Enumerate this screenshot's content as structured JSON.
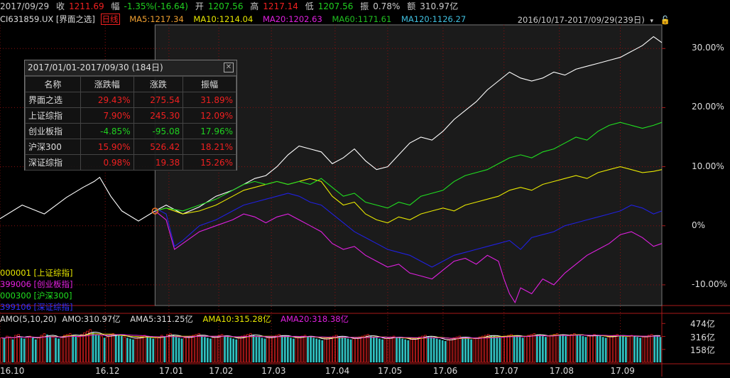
{
  "topbar": {
    "date": "2017/09/29",
    "close_label": "收",
    "close": "1211.69",
    "chg_label": "幅",
    "chg": "-1.35%(-16.64)",
    "open_label": "开",
    "open": "1207.56",
    "high_label": "高",
    "high": "1217.14",
    "low_label": "低",
    "low": "1207.56",
    "amp_label": "振",
    "amp": "0.78%",
    "vol_label": "额",
    "vol": "310.97亿"
  },
  "mabar": {
    "code": "CI631859.UX [界面之选]",
    "period": "日线",
    "ma5": "MA5:1217.34",
    "ma10": "MA10:1214.04",
    "ma20": "MA20:1202.63",
    "ma60": "MA60:1171.61",
    "ma120": "MA120:1126.27",
    "range": "2016/10/17-2017/09/29(239日)",
    "dropdown_icon": "chevron-down-icon",
    "lock_icon": "lock-icon"
  },
  "stats": {
    "title": "2017/01/01-2017/09/30 (184日)",
    "close_icon": "close-icon",
    "headers": [
      "名称",
      "涨跌幅",
      "涨跌",
      "振幅"
    ],
    "rows": [
      {
        "name": "界面之选",
        "pct": "29.43%",
        "chg": "275.54",
        "amp": "31.89%",
        "dir": "up"
      },
      {
        "name": "上证综指",
        "pct": "7.90%",
        "chg": "245.30",
        "amp": "12.09%",
        "dir": "up"
      },
      {
        "name": "创业板指",
        "pct": "-4.85%",
        "chg": "-95.08",
        "amp": "17.96%",
        "dir": "dn"
      },
      {
        "name": "沪深300",
        "pct": "15.90%",
        "chg": "526.42",
        "amp": "18.21%",
        "dir": "up"
      },
      {
        "name": "深证综指",
        "pct": "0.98%",
        "chg": "19.38",
        "amp": "15.26%",
        "dir": "up"
      }
    ]
  },
  "legend": [
    {
      "label": "000001 [上证综指]",
      "color": "#e8e800"
    },
    {
      "label": "399006 [创业板指]",
      "color": "#e020e0"
    },
    {
      "label": "000300 [沪深300]",
      "color": "#20e020"
    },
    {
      "label": "399106 [深证综指]",
      "color": "#3030ff"
    }
  ],
  "amobar": {
    "amo": "AMO(5,10,20)",
    "amo_val": "AMO:310.97亿",
    "ama5": "AMA5:311.25亿",
    "ama10": "AMA10:315.28亿",
    "ama20": "AMA20:318.38亿"
  },
  "colors": {
    "main": "#ffffff",
    "sh": "#e8e800",
    "cyb": "#e020e0",
    "hs300": "#20e020",
    "sz": "#2020e0",
    "grid": "#8a1010",
    "up": "#f02020",
    "down": "#20d020"
  },
  "chart_data": [
    {
      "type": "line",
      "title": "",
      "y_tick_labels": [
        "30.00%",
        "20.00%",
        "10.00%",
        "0%",
        "-10.00%"
      ],
      "y_ticks": [
        30,
        20,
        10,
        0,
        -10
      ],
      "ylim": [
        -13.5,
        34
      ],
      "x_tick_labels": [
        "16.10",
        "16.12",
        "17.01",
        "17.02",
        "17.03",
        "17.04",
        "17.05",
        "17.06",
        "17.07",
        "17.08",
        "17.09"
      ],
      "x_ticks": [
        0,
        38,
        61,
        79,
        98,
        121,
        140,
        160,
        182,
        202,
        224
      ],
      "x_range": [
        0,
        239
      ],
      "compare_start": 56,
      "series": [
        {
          "name": "界面之选",
          "color": "#ffffff",
          "start": 0,
          "x": [
            0,
            8,
            16,
            24,
            30,
            34,
            36,
            40,
            44,
            50,
            56,
            60,
            66,
            72,
            78,
            84,
            88,
            92,
            96,
            100,
            104,
            108,
            112,
            116,
            120,
            124,
            128,
            132,
            136,
            140,
            144,
            148,
            152,
            156,
            160,
            164,
            168,
            172,
            176,
            180,
            184,
            188,
            192,
            196,
            200,
            204,
            208,
            212,
            216,
            220,
            224,
            228,
            232,
            236,
            239
          ],
          "y": [
            1.2,
            3.5,
            2.0,
            4.8,
            6.5,
            7.5,
            8.2,
            5.0,
            2.5,
            0.8,
            2.5,
            3.5,
            2.0,
            3.2,
            5.0,
            6.0,
            7.0,
            8.0,
            8.5,
            10.0,
            12.0,
            13.5,
            13.0,
            12.5,
            10.5,
            11.5,
            13.0,
            11.0,
            9.5,
            10.0,
            12.0,
            14.0,
            15.0,
            14.5,
            16.0,
            18.0,
            19.5,
            21.0,
            23.0,
            24.5,
            26.0,
            25.0,
            24.5,
            25.0,
            26.0,
            25.5,
            26.5,
            27.0,
            27.5,
            28.0,
            28.5,
            29.5,
            30.5,
            32.0,
            31.0
          ]
        },
        {
          "name": "上证综指",
          "color": "#e8e800",
          "start": 56,
          "x": [
            56,
            60,
            66,
            72,
            78,
            84,
            88,
            92,
            96,
            100,
            104,
            108,
            112,
            116,
            120,
            124,
            128,
            132,
            136,
            140,
            144,
            148,
            152,
            156,
            160,
            164,
            168,
            172,
            176,
            180,
            184,
            188,
            192,
            196,
            200,
            204,
            208,
            212,
            216,
            220,
            224,
            228,
            232,
            236,
            239
          ],
          "y": [
            2.5,
            3.0,
            2.0,
            2.5,
            3.5,
            5.0,
            6.0,
            6.5,
            7.0,
            7.5,
            7.0,
            7.5,
            8.0,
            7.5,
            5.0,
            3.5,
            4.0,
            2.0,
            1.0,
            0.5,
            1.5,
            1.0,
            2.0,
            2.5,
            3.0,
            2.5,
            3.5,
            4.0,
            4.5,
            5.0,
            6.0,
            6.5,
            6.0,
            7.0,
            7.5,
            8.0,
            8.5,
            8.0,
            9.0,
            9.5,
            10.0,
            9.5,
            9.0,
            9.2,
            9.5
          ]
        },
        {
          "name": "沪深300",
          "color": "#20e020",
          "start": 56,
          "x": [
            56,
            60,
            66,
            72,
            78,
            84,
            88,
            92,
            96,
            100,
            104,
            108,
            112,
            116,
            120,
            124,
            128,
            132,
            136,
            140,
            144,
            148,
            152,
            156,
            160,
            164,
            168,
            172,
            176,
            180,
            184,
            188,
            192,
            196,
            200,
            204,
            208,
            212,
            216,
            220,
            224,
            228,
            232,
            236,
            239
          ],
          "y": [
            2.5,
            3.0,
            2.5,
            3.5,
            4.5,
            6.0,
            7.0,
            7.5,
            7.0,
            7.5,
            7.0,
            7.5,
            7.0,
            8.0,
            6.5,
            5.0,
            5.5,
            4.0,
            3.5,
            3.0,
            4.0,
            3.5,
            5.0,
            5.5,
            6.0,
            7.5,
            8.5,
            9.0,
            9.5,
            10.5,
            11.5,
            12.0,
            11.5,
            12.5,
            13.0,
            14.0,
            15.0,
            14.5,
            16.0,
            17.0,
            17.5,
            17.0,
            16.5,
            17.0,
            17.5
          ]
        },
        {
          "name": "创业板指",
          "color": "#e020e0",
          "start": 56,
          "x": [
            56,
            60,
            63,
            66,
            72,
            78,
            84,
            88,
            92,
            96,
            100,
            104,
            108,
            112,
            116,
            120,
            124,
            128,
            132,
            136,
            140,
            144,
            148,
            152,
            156,
            160,
            164,
            168,
            172,
            176,
            180,
            182,
            184,
            186,
            188,
            192,
            196,
            200,
            204,
            208,
            212,
            216,
            220,
            224,
            228,
            232,
            236,
            239
          ],
          "y": [
            2.5,
            1.0,
            -4.0,
            -3.0,
            -1.0,
            0.0,
            1.0,
            2.0,
            1.5,
            0.5,
            1.5,
            2.0,
            1.0,
            0.0,
            -1.0,
            -3.0,
            -4.0,
            -3.5,
            -5.0,
            -6.0,
            -7.0,
            -6.5,
            -8.0,
            -8.5,
            -9.0,
            -7.5,
            -6.0,
            -5.5,
            -6.5,
            -5.0,
            -6.0,
            -9.0,
            -11.5,
            -13.0,
            -10.5,
            -11.5,
            -9.0,
            -10.0,
            -8.0,
            -6.5,
            -5.0,
            -4.0,
            -3.0,
            -1.5,
            -1.0,
            -2.0,
            -3.5,
            -3.0
          ]
        },
        {
          "name": "深证综指",
          "color": "#2020e0",
          "start": 56,
          "x": [
            56,
            60,
            63,
            66,
            72,
            78,
            84,
            88,
            92,
            96,
            100,
            104,
            108,
            112,
            116,
            120,
            124,
            128,
            132,
            136,
            140,
            144,
            148,
            152,
            156,
            160,
            164,
            168,
            172,
            176,
            180,
            184,
            188,
            192,
            196,
            200,
            204,
            208,
            212,
            216,
            220,
            224,
            228,
            232,
            236,
            239
          ],
          "y": [
            3.0,
            2.0,
            -3.5,
            -2.5,
            0.0,
            1.0,
            2.5,
            3.5,
            4.0,
            4.5,
            5.0,
            5.5,
            5.0,
            4.0,
            3.5,
            2.0,
            0.5,
            -1.0,
            -2.0,
            -3.0,
            -4.0,
            -4.5,
            -5.0,
            -6.0,
            -7.0,
            -6.0,
            -5.0,
            -4.5,
            -4.0,
            -3.5,
            -3.0,
            -2.5,
            -4.0,
            -2.0,
            -1.5,
            -1.0,
            0.0,
            0.5,
            1.0,
            1.5,
            2.0,
            2.5,
            3.5,
            3.0,
            2.0,
            2.5
          ]
        }
      ]
    },
    {
      "type": "bar",
      "title": "",
      "y_tick_labels": [
        "474亿",
        "316亿",
        "158亿"
      ],
      "y_ticks": [
        474,
        316,
        158
      ],
      "ylim": [
        0,
        520
      ],
      "x_range": [
        0,
        239
      ],
      "values": [
        300,
        290,
        320,
        310,
        280,
        330,
        340,
        300,
        290,
        310,
        320,
        300,
        280,
        300,
        330,
        350,
        340,
        320,
        310,
        300,
        290,
        310,
        330,
        340,
        350,
        330,
        320,
        310,
        340,
        360,
        380,
        400,
        360,
        340,
        330,
        320,
        300,
        310,
        340,
        350,
        340,
        330,
        320,
        310,
        300,
        290,
        280,
        300,
        310,
        320,
        330,
        310,
        300,
        290,
        300,
        310,
        330,
        320,
        340,
        350,
        330,
        320,
        300,
        290,
        300,
        310,
        320,
        330,
        340,
        350,
        320,
        310,
        300,
        290,
        310,
        320,
        330,
        340,
        320,
        310,
        300,
        290,
        280,
        300,
        320,
        330,
        340,
        350,
        330,
        320,
        310,
        300,
        290,
        300,
        310,
        320,
        330,
        340,
        330,
        320,
        310,
        300,
        290,
        300,
        310,
        320,
        330,
        320,
        310,
        300,
        290,
        280,
        270,
        290,
        300,
        310,
        320,
        330,
        320,
        310,
        300,
        290,
        280,
        290,
        300,
        310,
        320,
        330,
        340,
        320,
        310,
        300,
        290,
        280,
        290,
        300,
        310,
        320,
        310,
        300,
        290,
        280,
        270,
        280,
        290,
        300,
        310,
        320,
        330,
        320,
        310,
        300,
        290,
        280,
        270,
        260,
        280,
        290,
        300,
        310,
        320,
        310,
        300,
        290,
        280,
        290,
        300,
        310,
        320,
        330,
        340,
        330,
        320,
        310,
        300,
        310,
        320,
        330,
        340,
        330,
        320,
        310,
        300,
        320,
        330,
        340,
        350,
        340,
        330,
        320,
        310,
        320,
        330,
        340,
        350,
        340,
        330,
        320,
        330,
        340,
        350,
        340,
        330,
        320,
        310,
        320,
        330,
        340,
        330,
        320,
        310,
        300,
        310,
        320,
        330,
        340,
        330,
        320,
        310,
        320,
        330,
        320,
        310,
        300,
        310,
        320,
        330,
        340,
        330,
        320,
        310
      ],
      "up": [
        1,
        0,
        1,
        1,
        0,
        1,
        1,
        0,
        0,
        1,
        1,
        0,
        0,
        1,
        1,
        1,
        0,
        0,
        1,
        0,
        0,
        1,
        1,
        1,
        1,
        0,
        0,
        1,
        1,
        1,
        1,
        1,
        0,
        0,
        0,
        1,
        0,
        1,
        1,
        1,
        0,
        0,
        0,
        1,
        0,
        0,
        0,
        1,
        1,
        1,
        1,
        0,
        0,
        0,
        1,
        1,
        1,
        0,
        1,
        1,
        0,
        0,
        0,
        0,
        1,
        1,
        1,
        1,
        1,
        1,
        0,
        0,
        0,
        0,
        1,
        1,
        1,
        1,
        0,
        0,
        0,
        0,
        0,
        1,
        1,
        1,
        1,
        1,
        0,
        0,
        0,
        0,
        0,
        1,
        1,
        1,
        1,
        1,
        0,
        0,
        0,
        0,
        0,
        1,
        1,
        1,
        1,
        0,
        0,
        0,
        0,
        0,
        0,
        1,
        1,
        1,
        1,
        1,
        0,
        0,
        0,
        0,
        0,
        1,
        1,
        1,
        1,
        1,
        1,
        0,
        0,
        0,
        0,
        0,
        1,
        1,
        1,
        1,
        0,
        0,
        0,
        0,
        0,
        1,
        1,
        1,
        1,
        1,
        1,
        0,
        0,
        0,
        0,
        0,
        0,
        0,
        1,
        1,
        1,
        1,
        1,
        0,
        0,
        0,
        0,
        1,
        1,
        1,
        1,
        1,
        1,
        0,
        0,
        0,
        0,
        1,
        1,
        1,
        1,
        0,
        0,
        0,
        0,
        1,
        1,
        1,
        1,
        0,
        0,
        0,
        0,
        1,
        1,
        1,
        1,
        0,
        0,
        0,
        1,
        1,
        1,
        0,
        0,
        0,
        0,
        1,
        1,
        1,
        0,
        0,
        0,
        0,
        1,
        1,
        1,
        1,
        0,
        0,
        0,
        1,
        1,
        0,
        0,
        0,
        1,
        1,
        1,
        1,
        0,
        0,
        0,
        1
      ]
    }
  ]
}
